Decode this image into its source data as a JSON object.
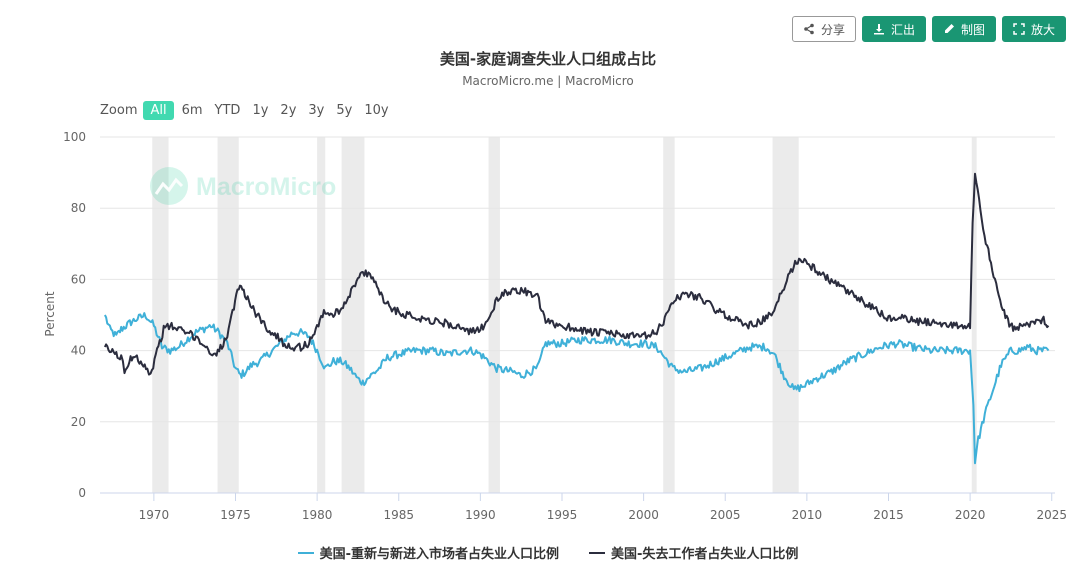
{
  "toolbar": {
    "share_label": "分享",
    "export_label": "汇出",
    "draw_label": "制图",
    "zoom_label": "放大"
  },
  "chart_data": {
    "type": "line",
    "title": "美国-家庭调查失业人口组成占比",
    "subtitle": "MacroMicro.me | MacroMicro",
    "watermark": "MacroMicro",
    "ylabel": "Percent",
    "xlabel": "",
    "ylim": [
      0,
      100
    ],
    "yticks": [
      0,
      20,
      40,
      60,
      80,
      100
    ],
    "xlim": [
      1966.7,
      2025.2
    ],
    "xticks": [
      1970,
      1975,
      1980,
      1985,
      1990,
      1995,
      2000,
      2005,
      2010,
      2015,
      2020,
      2025
    ],
    "grid": true,
    "legend_position": "bottom",
    "zoom_label": "Zoom",
    "zoom_options": [
      "All",
      "6m",
      "YTD",
      "1y",
      "2y",
      "3y",
      "5y",
      "10y"
    ],
    "zoom_selected": "All",
    "recessions": [
      [
        1969.9,
        1970.9
      ],
      [
        1973.9,
        1975.2
      ],
      [
        1980.0,
        1980.5
      ],
      [
        1981.5,
        1982.9
      ],
      [
        1990.5,
        1991.2
      ],
      [
        2001.2,
        2001.9
      ],
      [
        2007.9,
        2009.5
      ],
      [
        2020.1,
        2020.4
      ]
    ],
    "colors": {
      "reentrants": "#3fb0d8",
      "job_losers": "#2b2d3e",
      "recession": "#ebebeb"
    },
    "series": [
      {
        "name": "美国-重新与新进入市场者占失业人口比例",
        "color": "#3fb0d8",
        "points": [
          [
            1967.0,
            50
          ],
          [
            1967.3,
            46
          ],
          [
            1967.7,
            44
          ],
          [
            1968.0,
            46
          ],
          [
            1968.3,
            47
          ],
          [
            1968.6,
            48
          ],
          [
            1969.0,
            49
          ],
          [
            1969.5,
            50
          ],
          [
            1970.0,
            47
          ],
          [
            1970.5,
            41
          ],
          [
            1971.0,
            40
          ],
          [
            1971.5,
            41
          ],
          [
            1972.0,
            43
          ],
          [
            1972.5,
            45
          ],
          [
            1973.0,
            46
          ],
          [
            1973.5,
            47
          ],
          [
            1974.0,
            45
          ],
          [
            1974.5,
            42
          ],
          [
            1975.0,
            35
          ],
          [
            1975.3,
            33
          ],
          [
            1975.6,
            34
          ],
          [
            1976.0,
            36
          ],
          [
            1976.5,
            37
          ],
          [
            1977.0,
            39
          ],
          [
            1977.5,
            41
          ],
          [
            1978.0,
            43
          ],
          [
            1978.5,
            45
          ],
          [
            1979.0,
            45
          ],
          [
            1979.5,
            44
          ],
          [
            1980.0,
            40
          ],
          [
            1980.5,
            35
          ],
          [
            1981.0,
            37
          ],
          [
            1981.5,
            37
          ],
          [
            1982.0,
            35
          ],
          [
            1982.5,
            32
          ],
          [
            1982.8,
            31
          ],
          [
            1983.3,
            33
          ],
          [
            1983.8,
            35
          ],
          [
            1984.3,
            38
          ],
          [
            1985.0,
            39
          ],
          [
            1986.0,
            40
          ],
          [
            1987.0,
            40
          ],
          [
            1988.0,
            39
          ],
          [
            1989.0,
            40
          ],
          [
            1989.5,
            40
          ],
          [
            1990.0,
            39
          ],
          [
            1990.5,
            37
          ],
          [
            1991.0,
            35
          ],
          [
            1992.0,
            34
          ],
          [
            1992.5,
            33
          ],
          [
            1993.0,
            34
          ],
          [
            1993.5,
            35
          ],
          [
            1994.0,
            42
          ],
          [
            1995.0,
            42
          ],
          [
            1996.0,
            43
          ],
          [
            1997.0,
            43
          ],
          [
            1998.0,
            43
          ],
          [
            1999.0,
            42
          ],
          [
            2000.0,
            42
          ],
          [
            2000.8,
            41
          ],
          [
            2001.3,
            38
          ],
          [
            2001.8,
            35
          ],
          [
            2002.5,
            34
          ],
          [
            2003.5,
            35
          ],
          [
            2004.5,
            37
          ],
          [
            2005.5,
            39
          ],
          [
            2006.5,
            41
          ],
          [
            2007.5,
            41
          ],
          [
            2008.0,
            39
          ],
          [
            2008.6,
            33
          ],
          [
            2009.2,
            29
          ],
          [
            2009.8,
            30
          ],
          [
            2010.5,
            32
          ],
          [
            2011.5,
            34
          ],
          [
            2012.5,
            37
          ],
          [
            2013.5,
            39
          ],
          [
            2014.5,
            41
          ],
          [
            2015.5,
            42
          ],
          [
            2016.5,
            41
          ],
          [
            2017.5,
            40
          ],
          [
            2018.5,
            40
          ],
          [
            2019.5,
            40
          ],
          [
            2020.0,
            40
          ],
          [
            2020.2,
            25
          ],
          [
            2020.3,
            9
          ],
          [
            2020.5,
            15
          ],
          [
            2020.9,
            22
          ],
          [
            2021.4,
            29
          ],
          [
            2021.9,
            36
          ],
          [
            2022.5,
            40
          ],
          [
            2023.0,
            40
          ],
          [
            2023.5,
            41
          ],
          [
            2024.0,
            40
          ],
          [
            2024.5,
            40
          ],
          [
            2024.8,
            40
          ]
        ]
      },
      {
        "name": "美国-失去工作者占失业人口比例",
        "color": "#2b2d3e",
        "points": [
          [
            1967.0,
            41
          ],
          [
            1967.3,
            40
          ],
          [
            1967.7,
            39
          ],
          [
            1968.0,
            38
          ],
          [
            1968.2,
            34
          ],
          [
            1968.5,
            37
          ],
          [
            1968.8,
            39
          ],
          [
            1969.2,
            37
          ],
          [
            1969.6,
            35
          ],
          [
            1969.8,
            33
          ],
          [
            1970.2,
            40
          ],
          [
            1970.6,
            46
          ],
          [
            1971.0,
            47
          ],
          [
            1971.5,
            46
          ],
          [
            1972.0,
            45
          ],
          [
            1972.5,
            44
          ],
          [
            1973.0,
            42
          ],
          [
            1973.5,
            39
          ],
          [
            1974.0,
            40
          ],
          [
            1974.5,
            44
          ],
          [
            1974.9,
            52
          ],
          [
            1975.2,
            58
          ],
          [
            1975.5,
            57
          ],
          [
            1976.0,
            52
          ],
          [
            1976.5,
            49
          ],
          [
            1977.0,
            46
          ],
          [
            1977.5,
            44
          ],
          [
            1978.0,
            42
          ],
          [
            1978.5,
            41
          ],
          [
            1979.0,
            41
          ],
          [
            1979.5,
            42
          ],
          [
            1980.0,
            47
          ],
          [
            1980.5,
            51
          ],
          [
            1981.0,
            50
          ],
          [
            1981.5,
            52
          ],
          [
            1982.0,
            56
          ],
          [
            1982.5,
            60
          ],
          [
            1982.8,
            62
          ],
          [
            1983.5,
            60
          ],
          [
            1984.0,
            55
          ],
          [
            1984.5,
            52
          ],
          [
            1985.5,
            50
          ],
          [
            1986.5,
            49
          ],
          [
            1987.5,
            48
          ],
          [
            1988.5,
            47
          ],
          [
            1989.3,
            45
          ],
          [
            1990.0,
            46
          ],
          [
            1990.5,
            49
          ],
          [
            1991.0,
            54
          ],
          [
            1991.5,
            56
          ],
          [
            1992.0,
            57
          ],
          [
            1992.5,
            57
          ],
          [
            1993.0,
            56
          ],
          [
            1993.5,
            55
          ],
          [
            1994.0,
            48
          ],
          [
            1995.0,
            47
          ],
          [
            1996.0,
            46
          ],
          [
            1997.0,
            45
          ],
          [
            1998.0,
            45
          ],
          [
            1999.0,
            44
          ],
          [
            2000.0,
            44
          ],
          [
            2000.8,
            45
          ],
          [
            2001.3,
            49
          ],
          [
            2001.8,
            54
          ],
          [
            2002.5,
            56
          ],
          [
            2003.5,
            55
          ],
          [
            2004.5,
            51
          ],
          [
            2005.5,
            49
          ],
          [
            2006.5,
            47
          ],
          [
            2007.5,
            49
          ],
          [
            2008.0,
            51
          ],
          [
            2008.6,
            58
          ],
          [
            2009.2,
            64
          ],
          [
            2009.6,
            66
          ],
          [
            2010.2,
            64
          ],
          [
            2011.0,
            61
          ],
          [
            2012.0,
            58
          ],
          [
            2013.0,
            55
          ],
          [
            2014.0,
            52
          ],
          [
            2015.0,
            49
          ],
          [
            2016.0,
            49
          ],
          [
            2017.0,
            48
          ],
          [
            2018.0,
            48
          ],
          [
            2019.0,
            47
          ],
          [
            2020.0,
            47
          ],
          [
            2020.15,
            75
          ],
          [
            2020.3,
            89
          ],
          [
            2020.55,
            82
          ],
          [
            2020.8,
            74
          ],
          [
            2021.2,
            66
          ],
          [
            2021.6,
            58
          ],
          [
            2022.0,
            52
          ],
          [
            2022.4,
            47
          ],
          [
            2022.8,
            46
          ],
          [
            2023.3,
            47
          ],
          [
            2023.8,
            48
          ],
          [
            2024.2,
            48
          ],
          [
            2024.5,
            49
          ],
          [
            2024.8,
            47
          ]
        ]
      }
    ]
  }
}
